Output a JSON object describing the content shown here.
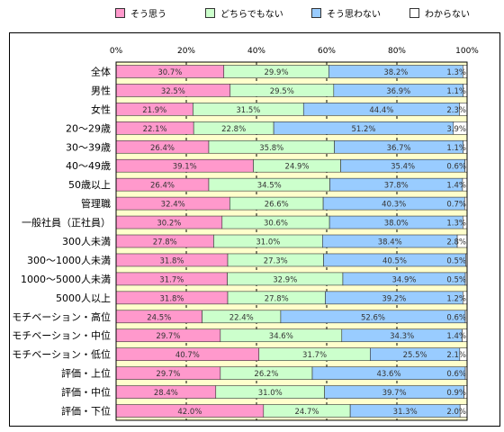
{
  "chart_data": {
    "type": "bar",
    "stacked": true,
    "orientation": "horizontal",
    "title": "",
    "xlabel": "",
    "ylabel": "",
    "xlim": [
      0,
      100
    ],
    "x_ticks": [
      "0%",
      "20%",
      "40%",
      "60%",
      "80%",
      "100%"
    ],
    "grid": true,
    "legend_placement": "top",
    "categories": [
      "全体",
      "男性",
      "女性",
      "20～29歳",
      "30～39歳",
      "40～49歳",
      "50歳以上",
      "管理職",
      "一般社員（正社員）",
      "300人未満",
      "300～1000人未満",
      "1000～5000人未満",
      "5000人以上",
      "モチベーション・高位",
      "モチベーション・中位",
      "モチベーション・低位",
      "評価・上位",
      "評価・中位",
      "評価・下位"
    ],
    "series": [
      {
        "name": "そう思う",
        "color": "#ff99cc",
        "values": [
          30.7,
          32.5,
          21.9,
          22.1,
          26.4,
          39.1,
          26.4,
          32.4,
          30.2,
          27.8,
          31.8,
          31.7,
          31.8,
          24.5,
          29.7,
          40.7,
          29.7,
          28.4,
          42.0
        ]
      },
      {
        "name": "どちらでもない",
        "color": "#ccffcc",
        "values": [
          29.9,
          29.5,
          31.5,
          22.8,
          35.8,
          24.9,
          34.5,
          26.6,
          30.6,
          31.0,
          27.3,
          32.9,
          27.8,
          22.4,
          34.6,
          31.7,
          26.2,
          31.0,
          24.7
        ]
      },
      {
        "name": "そう思わない",
        "color": "#99ccff",
        "values": [
          38.2,
          36.9,
          44.4,
          51.2,
          36.7,
          35.4,
          37.8,
          40.3,
          38.0,
          38.4,
          40.5,
          34.9,
          39.2,
          52.6,
          34.3,
          25.5,
          43.6,
          39.7,
          31.3
        ]
      },
      {
        "name": "わからない",
        "color": "#ffffff",
        "values": [
          1.3,
          1.1,
          2.3,
          3.9,
          1.1,
          0.6,
          1.4,
          0.7,
          1.3,
          2.8,
          0.5,
          0.5,
          1.2,
          0.6,
          1.4,
          2.1,
          0.6,
          0.9,
          2.0
        ]
      }
    ],
    "value_labels": [
      [
        "30.7%",
        "29.9%",
        "38.2%",
        "1.3%"
      ],
      [
        "32.5%",
        "29.5%",
        "36.9%",
        "1.1%"
      ],
      [
        "21.9%",
        "31.5%",
        "44.4%",
        "2.3%"
      ],
      [
        "22.1%",
        "22.8%",
        "51.2%",
        "3.9%"
      ],
      [
        "26.4%",
        "35.8%",
        "36.7%",
        "1.1%"
      ],
      [
        "39.1%",
        "24.9%",
        "35.4%",
        "0.6%"
      ],
      [
        "26.4%",
        "34.5%",
        "37.8%",
        "1.4%"
      ],
      [
        "32.4%",
        "26.6%",
        "40.3%",
        "0.7%"
      ],
      [
        "30.2%",
        "30.6%",
        "38.0%",
        "1.3%"
      ],
      [
        "27.8%",
        "31.0%",
        "38.4%",
        "2.8%"
      ],
      [
        "31.8%",
        "27.3%",
        "40.5%",
        "0.5%"
      ],
      [
        "31.7%",
        "32.9%",
        "34.9%",
        "0.5%"
      ],
      [
        "31.8%",
        "27.8%",
        "39.2%",
        "1.2%"
      ],
      [
        "24.5%",
        "22.4%",
        "52.6%",
        "0.6%"
      ],
      [
        "29.7%",
        "34.6%",
        "34.3%",
        "1.4%"
      ],
      [
        "40.7%",
        "31.7%",
        "25.5%",
        "2.1%"
      ],
      [
        "29.7%",
        "26.2%",
        "43.6%",
        "0.6%"
      ],
      [
        "28.4%",
        "31.0%",
        "39.7%",
        "0.9%"
      ],
      [
        "42.0%",
        "24.7%",
        "31.3%",
        "2.0%"
      ]
    ],
    "plot_background": "#ffffcc"
  }
}
